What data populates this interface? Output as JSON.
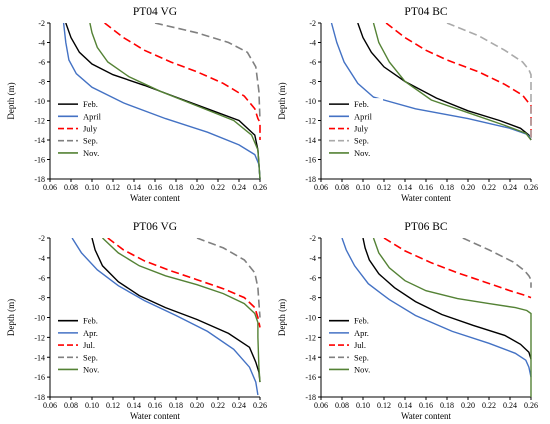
{
  "chart_data": [
    {
      "type": "line",
      "title": "PT04 VG",
      "xlabel": "Water content",
      "ylabel": "Depth (m)",
      "xlim": [
        0.06,
        0.26
      ],
      "ylim": [
        -18,
        -2
      ],
      "xticks": [
        "0.06",
        "0.08",
        "0.10",
        "0.12",
        "0.14",
        "0.16",
        "0.18",
        "0.20",
        "0.22",
        "0.24",
        "0.26"
      ],
      "yticks": [
        "-2",
        "-4",
        "-6",
        "-8",
        "-10",
        "-12",
        "-14",
        "-16",
        "-18"
      ],
      "legend": "lower-left",
      "series": [
        {
          "name": "Feb.",
          "color": "#000000",
          "dash": "solid",
          "points": [
            [
              0.075,
              -2
            ],
            [
              0.08,
              -3.5
            ],
            [
              0.088,
              -5
            ],
            [
              0.1,
              -6.2
            ],
            [
              0.12,
              -7.3
            ],
            [
              0.15,
              -8.4
            ],
            [
              0.18,
              -9.6
            ],
            [
              0.21,
              -10.8
            ],
            [
              0.24,
              -12
            ],
            [
              0.255,
              -13.5
            ],
            [
              0.258,
              -15
            ],
            [
              0.26,
              -18
            ]
          ]
        },
        {
          "name": "April",
          "color": "#4472c4",
          "dash": "solid",
          "points": [
            [
              0.073,
              -2
            ],
            [
              0.075,
              -4
            ],
            [
              0.078,
              -5.8
            ],
            [
              0.085,
              -7.2
            ],
            [
              0.1,
              -8.6
            ],
            [
              0.13,
              -10.2
            ],
            [
              0.17,
              -11.8
            ],
            [
              0.21,
              -13.2
            ],
            [
              0.24,
              -14.5
            ],
            [
              0.255,
              -15.5
            ],
            [
              0.259,
              -16.5
            ],
            [
              0.26,
              -18
            ]
          ]
        },
        {
          "name": "July",
          "color": "#ff0000",
          "dash": "8,4",
          "points": [
            [
              0.112,
              -2
            ],
            [
              0.13,
              -3.5
            ],
            [
              0.15,
              -4.8
            ],
            [
              0.175,
              -6.0
            ],
            [
              0.2,
              -7.0
            ],
            [
              0.225,
              -8.2
            ],
            [
              0.245,
              -9.5
            ],
            [
              0.255,
              -10.8
            ],
            [
              0.258,
              -11.8
            ],
            [
              0.26,
              -12.2
            ],
            [
              0.26,
              -14
            ]
          ]
        },
        {
          "name": "Sep.",
          "color": "#808080",
          "dash": "8,4",
          "points": [
            [
              0.16,
              -2
            ],
            [
              0.2,
              -3
            ],
            [
              0.23,
              -4
            ],
            [
              0.248,
              -5
            ],
            [
              0.256,
              -6.5
            ],
            [
              0.259,
              -9
            ],
            [
              0.26,
              -12
            ]
          ]
        },
        {
          "name": "Nov.",
          "color": "#548235",
          "dash": "solid",
          "points": [
            [
              0.098,
              -2
            ],
            [
              0.1,
              -3
            ],
            [
              0.105,
              -4.5
            ],
            [
              0.115,
              -6
            ],
            [
              0.135,
              -7.5
            ],
            [
              0.165,
              -9
            ],
            [
              0.2,
              -10.5
            ],
            [
              0.235,
              -12
            ],
            [
              0.252,
              -13.5
            ],
            [
              0.258,
              -15
            ],
            [
              0.26,
              -18
            ]
          ]
        }
      ]
    },
    {
      "type": "line",
      "title": "PT04 BC",
      "xlabel": "Water content",
      "ylabel": "Depth (m)",
      "xlim": [
        0.06,
        0.26
      ],
      "ylim": [
        -18,
        -2
      ],
      "xticks": [
        "0.06",
        "0.08",
        "0.10",
        "0.12",
        "0.14",
        "0.16",
        "0.18",
        "0.20",
        "0.22",
        "0.24",
        "0.26"
      ],
      "yticks": [
        "-2",
        "-4",
        "-6",
        "-8",
        "-10",
        "-12",
        "-14",
        "-16",
        "-18"
      ],
      "legend": "lower-left",
      "series": [
        {
          "name": "Feb.",
          "color": "#000000",
          "dash": "solid",
          "points": [
            [
              0.095,
              -2
            ],
            [
              0.1,
              -3.5
            ],
            [
              0.108,
              -5
            ],
            [
              0.12,
              -6.5
            ],
            [
              0.14,
              -8
            ],
            [
              0.17,
              -9.7
            ],
            [
              0.2,
              -11
            ],
            [
              0.23,
              -12
            ],
            [
              0.25,
              -12.8
            ],
            [
              0.258,
              -13.5
            ],
            [
              0.26,
              -14
            ]
          ]
        },
        {
          "name": "April",
          "color": "#4472c4",
          "dash": "solid",
          "points": [
            [
              0.07,
              -2
            ],
            [
              0.075,
              -4
            ],
            [
              0.082,
              -6
            ],
            [
              0.095,
              -8.2
            ],
            [
              0.11,
              -9.6
            ],
            [
              0.15,
              -10.8
            ],
            [
              0.2,
              -11.8
            ],
            [
              0.24,
              -12.8
            ],
            [
              0.256,
              -13.4
            ],
            [
              0.26,
              -13.8
            ]
          ]
        },
        {
          "name": "July",
          "color": "#ff0000",
          "dash": "8,4",
          "points": [
            [
              0.122,
              -2
            ],
            [
              0.14,
              -3.5
            ],
            [
              0.16,
              -4.8
            ],
            [
              0.18,
              -5.8
            ],
            [
              0.21,
              -7
            ],
            [
              0.235,
              -8.3
            ],
            [
              0.252,
              -9.4
            ],
            [
              0.26,
              -10.5
            ],
            [
              0.26,
              -14
            ]
          ]
        },
        {
          "name": "Sep.",
          "color": "#aaaaaa",
          "dash": "8,4",
          "points": [
            [
              0.18,
              -2
            ],
            [
              0.21,
              -3.3
            ],
            [
              0.235,
              -4.8
            ],
            [
              0.252,
              -6
            ],
            [
              0.258,
              -6.8
            ],
            [
              0.26,
              -7.3
            ],
            [
              0.26,
              -14
            ]
          ]
        },
        {
          "name": "Nov.",
          "color": "#548235",
          "dash": "solid",
          "points": [
            [
              0.11,
              -2
            ],
            [
              0.115,
              -4
            ],
            [
              0.125,
              -6
            ],
            [
              0.14,
              -8
            ],
            [
              0.165,
              -9.9
            ],
            [
              0.2,
              -11.2
            ],
            [
              0.235,
              -12.5
            ],
            [
              0.255,
              -13.3
            ],
            [
              0.26,
              -14
            ]
          ]
        }
      ]
    },
    {
      "type": "line",
      "title": "PT06 VG",
      "xlabel": "Water content",
      "ylabel": "Depth (m)",
      "xlim": [
        0.06,
        0.26
      ],
      "ylim": [
        -18,
        -2
      ],
      "xticks": [
        "0.06",
        "0.08",
        "0.10",
        "0.12",
        "0.14",
        "0.16",
        "0.18",
        "0.20",
        "0.22",
        "0.24",
        "0.26"
      ],
      "yticks": [
        "-2",
        "-4",
        "-6",
        "-8",
        "-10",
        "-12",
        "-14",
        "-16",
        "-18"
      ],
      "legend": "lower-left",
      "series": [
        {
          "name": "Feb.",
          "color": "#000000",
          "dash": "solid",
          "points": [
            [
              0.1,
              -2
            ],
            [
              0.103,
              -3.2
            ],
            [
              0.11,
              -4.8
            ],
            [
              0.125,
              -6.4
            ],
            [
              0.145,
              -7.8
            ],
            [
              0.17,
              -9.0
            ],
            [
              0.2,
              -10.2
            ],
            [
              0.23,
              -11.6
            ],
            [
              0.25,
              -13
            ],
            [
              0.256,
              -14.5
            ],
            [
              0.259,
              -15.5
            ],
            [
              0.26,
              -16.5
            ]
          ]
        },
        {
          "name": "Apr.",
          "color": "#4472c4",
          "dash": "solid",
          "points": [
            [
              0.081,
              -2
            ],
            [
              0.09,
              -3.5
            ],
            [
              0.105,
              -5.2
            ],
            [
              0.125,
              -6.8
            ],
            [
              0.15,
              -8.3
            ],
            [
              0.18,
              -9.8
            ],
            [
              0.21,
              -11.4
            ],
            [
              0.235,
              -13.2
            ],
            [
              0.25,
              -15
            ],
            [
              0.256,
              -16.5
            ],
            [
              0.258,
              -17.8
            ]
          ]
        },
        {
          "name": "Jul.",
          "color": "#ff0000",
          "dash": "8,4",
          "points": [
            [
              0.115,
              -2
            ],
            [
              0.13,
              -3.2
            ],
            [
              0.15,
              -4.3
            ],
            [
              0.175,
              -5.3
            ],
            [
              0.2,
              -6.2
            ],
            [
              0.225,
              -7.1
            ],
            [
              0.245,
              -8
            ],
            [
              0.255,
              -9
            ],
            [
              0.258,
              -10
            ],
            [
              0.26,
              -11
            ]
          ]
        },
        {
          "name": "Sep.",
          "color": "#808080",
          "dash": "8,4",
          "points": [
            [
              0.2,
              -2
            ],
            [
              0.225,
              -3
            ],
            [
              0.245,
              -4.2
            ],
            [
              0.255,
              -5.5
            ],
            [
              0.258,
              -7
            ],
            [
              0.259,
              -8.5
            ],
            [
              0.26,
              -10
            ]
          ]
        },
        {
          "name": "Nov.",
          "color": "#548235",
          "dash": "solid",
          "points": [
            [
              0.11,
              -2
            ],
            [
              0.125,
              -3.5
            ],
            [
              0.145,
              -4.8
            ],
            [
              0.17,
              -5.8
            ],
            [
              0.2,
              -6.7
            ],
            [
              0.225,
              -7.6
            ],
            [
              0.245,
              -8.6
            ],
            [
              0.255,
              -9.6
            ],
            [
              0.258,
              -10.5
            ],
            [
              0.258,
              -12
            ],
            [
              0.259,
              -15
            ],
            [
              0.26,
              -16.5
            ]
          ]
        }
      ]
    },
    {
      "type": "line",
      "title": "PT06 BC",
      "xlabel": "Water content",
      "ylabel": "Depth (m)",
      "xlim": [
        0.06,
        0.26
      ],
      "ylim": [
        -18,
        -2
      ],
      "xticks": [
        "0.06",
        "0.08",
        "0.10",
        "0.12",
        "0.14",
        "0.16",
        "0.18",
        "0.20",
        "0.22",
        "0.24",
        "0.26"
      ],
      "yticks": [
        "-2",
        "-4",
        "-6",
        "-8",
        "-10",
        "-12",
        "-14",
        "-16",
        "-18"
      ],
      "legend": "lower-left",
      "series": [
        {
          "name": "Feb.",
          "color": "#000000",
          "dash": "solid",
          "points": [
            [
              0.1,
              -2
            ],
            [
              0.102,
              -3
            ],
            [
              0.106,
              -4.2
            ],
            [
              0.115,
              -5.6
            ],
            [
              0.13,
              -7
            ],
            [
              0.15,
              -8.4
            ],
            [
              0.175,
              -9.7
            ],
            [
              0.205,
              -10.8
            ],
            [
              0.235,
              -11.8
            ],
            [
              0.25,
              -12.7
            ],
            [
              0.258,
              -13.5
            ],
            [
              0.26,
              -14.2
            ]
          ]
        },
        {
          "name": "Apr.",
          "color": "#4472c4",
          "dash": "solid",
          "points": [
            [
              0.08,
              -2
            ],
            [
              0.084,
              -3.2
            ],
            [
              0.092,
              -4.8
            ],
            [
              0.105,
              -6.6
            ],
            [
              0.125,
              -8.2
            ],
            [
              0.15,
              -9.8
            ],
            [
              0.185,
              -11.4
            ],
            [
              0.22,
              -12.6
            ],
            [
              0.245,
              -13.6
            ],
            [
              0.255,
              -14.3
            ],
            [
              0.258,
              -15
            ],
            [
              0.26,
              -16
            ]
          ]
        },
        {
          "name": "Jul.",
          "color": "#ff0000",
          "dash": "8,4",
          "points": [
            [
              0.12,
              -2
            ],
            [
              0.14,
              -3.3
            ],
            [
              0.165,
              -4.5
            ],
            [
              0.19,
              -5.5
            ],
            [
              0.215,
              -6.4
            ],
            [
              0.24,
              -7.3
            ],
            [
              0.255,
              -7.8
            ],
            [
              0.26,
              -8
            ]
          ]
        },
        {
          "name": "Sep.",
          "color": "#808080",
          "dash": "8,4",
          "points": [
            [
              0.195,
              -2
            ],
            [
              0.22,
              -3.2
            ],
            [
              0.243,
              -4.4
            ],
            [
              0.254,
              -5.3
            ],
            [
              0.258,
              -5.8
            ],
            [
              0.26,
              -6.2
            ],
            [
              0.26,
              -7
            ]
          ]
        },
        {
          "name": "Nov.",
          "color": "#548235",
          "dash": "solid",
          "points": [
            [
              0.11,
              -2
            ],
            [
              0.115,
              -3.5
            ],
            [
              0.125,
              -5
            ],
            [
              0.14,
              -6.3
            ],
            [
              0.16,
              -7.3
            ],
            [
              0.19,
              -8.1
            ],
            [
              0.22,
              -8.6
            ],
            [
              0.245,
              -9
            ],
            [
              0.256,
              -9.3
            ],
            [
              0.26,
              -9.6
            ],
            [
              0.26,
              -18
            ]
          ]
        }
      ]
    }
  ]
}
